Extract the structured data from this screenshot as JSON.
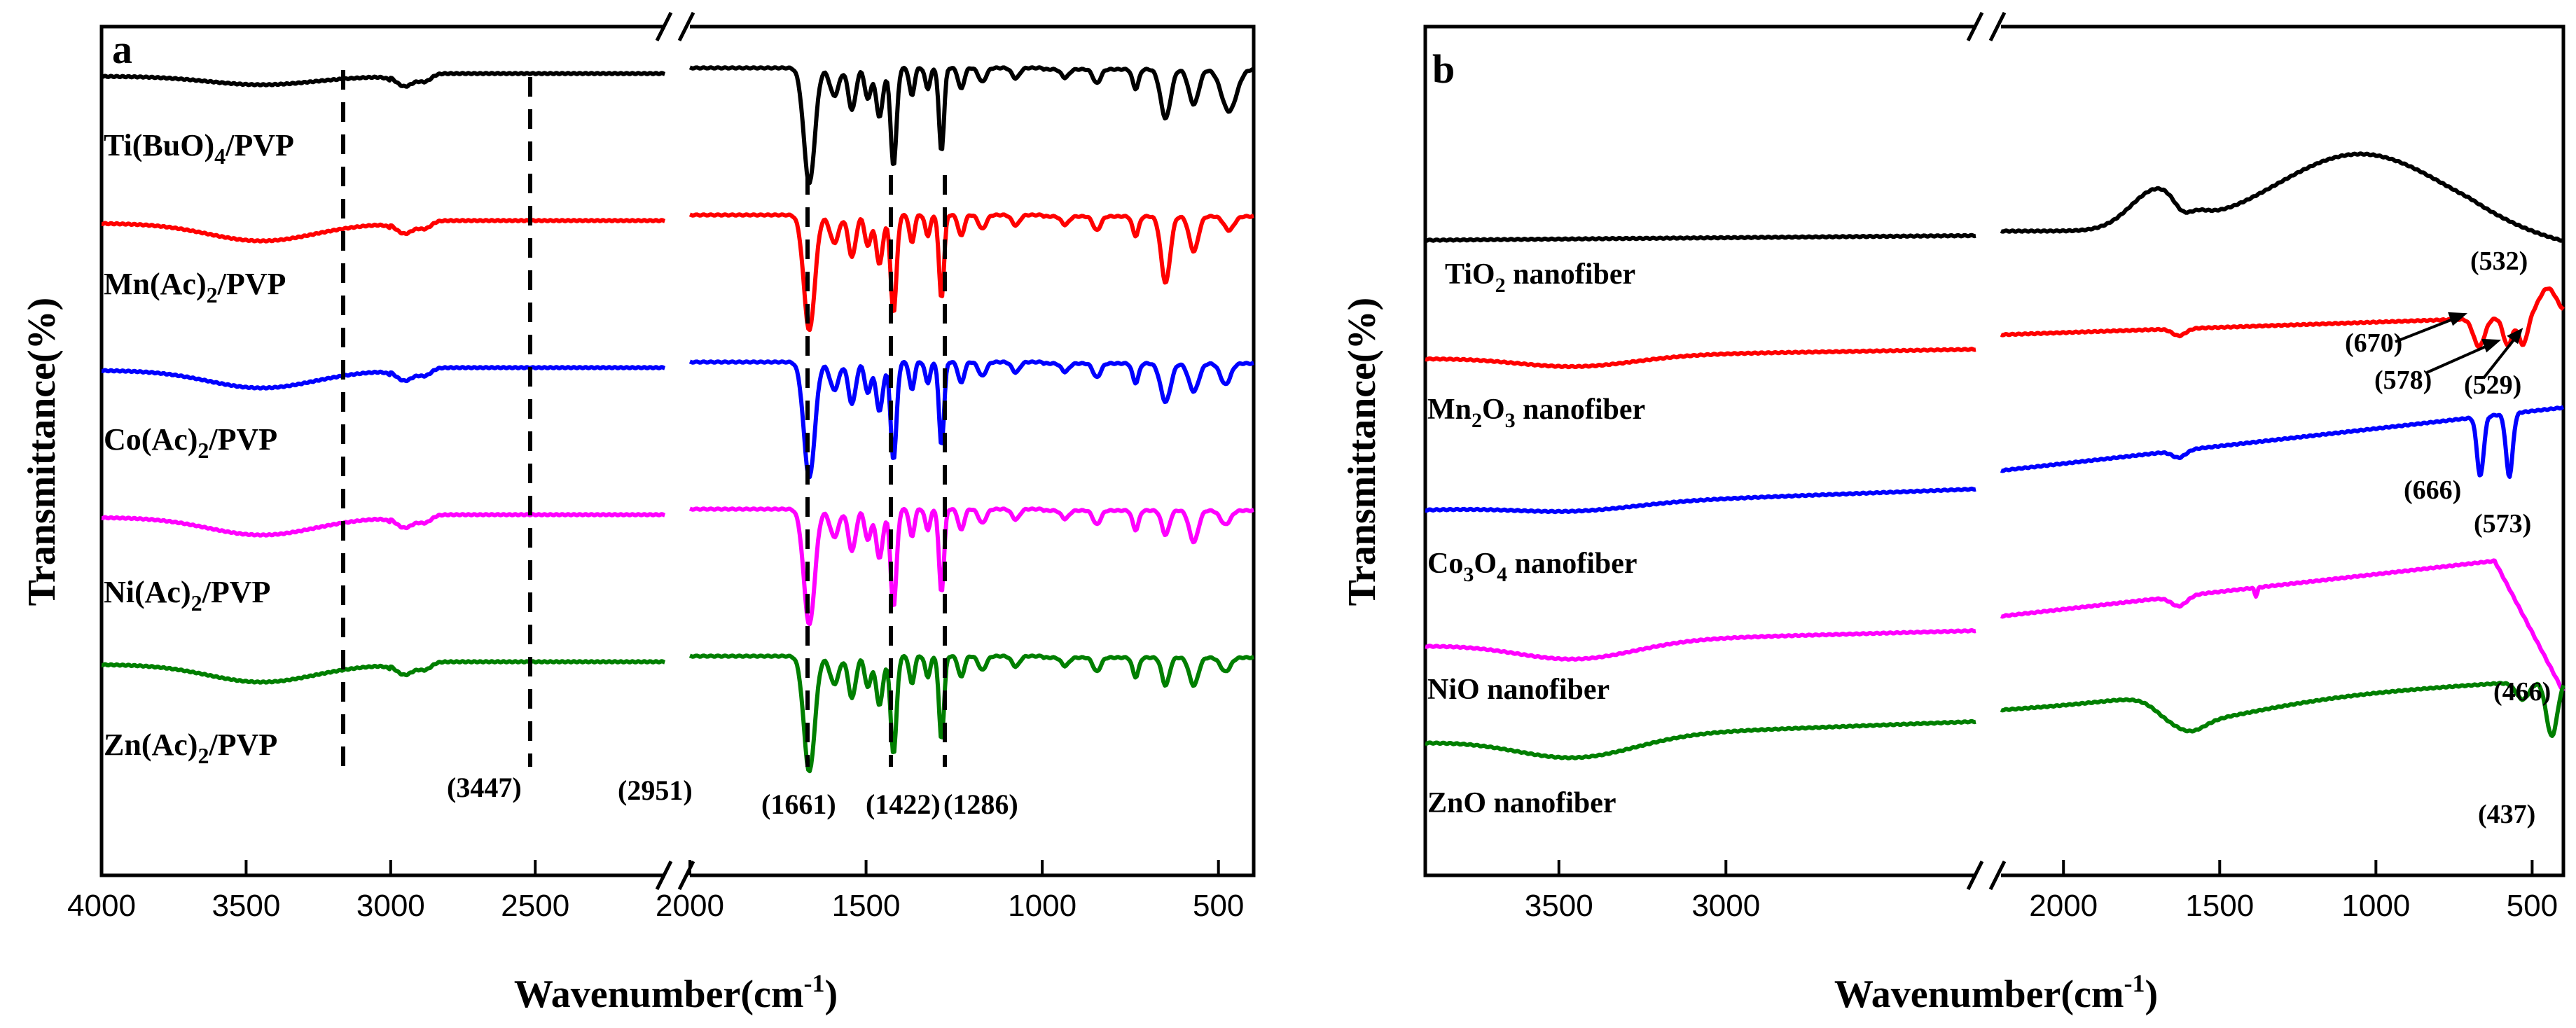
{
  "chart_data": [
    {
      "type": "line",
      "panel_label": "a",
      "xlabel": "Wavenumber(cm",
      "xlabel_sup": "-1",
      "xlabel_end": ")",
      "ylabel": "Transmittance(%)",
      "x_axis_break": true,
      "x_segments": [
        [
          4000,
          2050
        ],
        [
          2000,
          400
        ]
      ],
      "x_ticks": [
        "4000",
        "3500",
        "3000",
        "2500",
        "2000",
        "1500",
        "1000",
        "500"
      ],
      "series": [
        {
          "name_main": "Ti(BuO)",
          "name_sub": "4",
          "name_end": "/PVP",
          "color": "#000000"
        },
        {
          "name_main": "Mn(Ac)",
          "name_sub": "2",
          "name_end": "/PVP",
          "color": "#ff0000"
        },
        {
          "name_main": "Co(Ac)",
          "name_sub": "2",
          "name_end": "/PVP",
          "color": "#0000ff"
        },
        {
          "name_main": "Ni(Ac)",
          "name_sub": "2",
          "name_end": "/PVP",
          "color": "#ff00ff"
        },
        {
          "name_main": "Zn(Ac)",
          "name_sub": "2",
          "name_end": "/PVP",
          "color": "#007f00"
        }
      ],
      "peak_markers": [
        {
          "wavenumber": 3447,
          "label": "(3447)"
        },
        {
          "wavenumber": 2951,
          "label": "(2951)"
        },
        {
          "wavenumber": 1661,
          "label": "(1661)"
        },
        {
          "wavenumber": 1422,
          "label": "(1422)"
        },
        {
          "wavenumber": 1286,
          "label": "(1286)"
        }
      ]
    },
    {
      "type": "line",
      "panel_label": "b",
      "xlabel": "Wavenumber(cm",
      "xlabel_sup": "-1",
      "xlabel_end": ")",
      "ylabel": "Transmittance(%)",
      "x_axis_break": true,
      "x_segments": [
        [
          3900,
          2250
        ],
        [
          2200,
          400
        ]
      ],
      "x_ticks": [
        "3500",
        "3000",
        "2000",
        "1500",
        "1000",
        "500"
      ],
      "series": [
        {
          "name_main": "TiO",
          "name_sub": "2",
          "name_end": " nanofiber",
          "color": "#000000"
        },
        {
          "name_main": "Mn",
          "name_sub": "2",
          "name_mid": "O",
          "name_sub2": "3",
          "name_end": " nanofiber",
          "color": "#ff0000"
        },
        {
          "name_main": "Co",
          "name_sub": "3",
          "name_mid": "O",
          "name_sub2": "4",
          "name_end": " nanofiber",
          "color": "#0000ff"
        },
        {
          "name_main": "NiO nanofiber",
          "color": "#ff00ff"
        },
        {
          "name_main": "ZnO nanofiber",
          "color": "#007f00"
        }
      ],
      "peak_labels": [
        "(532)",
        "(670)",
        "(578)",
        "(529)",
        "(666)",
        "(573)",
        "(466)",
        "(437)"
      ]
    }
  ]
}
